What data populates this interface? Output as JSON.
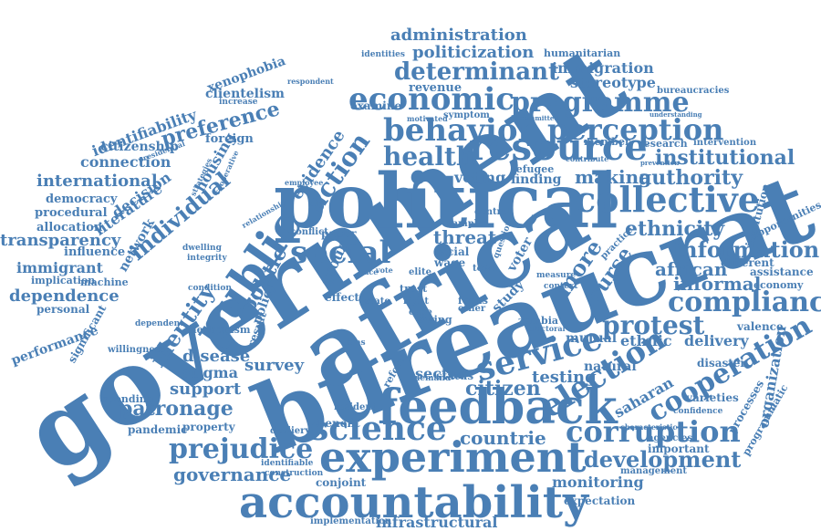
{
  "color": "#4a7fb5",
  "words": [
    "government",
    "bureaucrat",
    "political",
    "africa",
    "accountability",
    "feedback",
    "experiment",
    "resource",
    "economic",
    "behavior",
    "perception",
    "programme",
    "collective",
    "public",
    "social",
    "health",
    "science",
    "service",
    "election",
    "corruption",
    "compliance",
    "cooperation",
    "protest",
    "prejudice",
    "governance",
    "patronage",
    "information",
    "institutional",
    "determinant",
    "administration",
    "politicization",
    "immigration",
    "stereotype",
    "development",
    "monitoring",
    "infrastructural",
    "countrie",
    "citizen",
    "ethnicity",
    "authority",
    "making",
    "african",
    "informal",
    "identity",
    "individual",
    "action",
    "evidence",
    "preference",
    "connection",
    "international",
    "transparency",
    "immigrant",
    "dependence",
    "performance",
    "disease",
    "support",
    "stigma",
    "testing",
    "sector",
    "survey",
    "politic",
    "curse",
    "threat",
    "voting",
    "finding",
    "ethnic",
    "mutual",
    "natural",
    "delivery",
    "organization",
    "assistance",
    "economy",
    "valence",
    "different",
    "opportunities",
    "institution",
    "saharan",
    "varieties",
    "processes",
    "programmatic",
    "important",
    "agencies",
    "management",
    "expectation",
    "benefit",
    "conjoint",
    "implementation",
    "pandemic",
    "property",
    "spending",
    "identifiability",
    "clientelism",
    "xenophobia",
    "citizenship",
    "democracy",
    "procedural",
    "allocation",
    "influence",
    "implication",
    "personal",
    "significant",
    "network",
    "literature",
    "decision",
    "housing",
    "foreign",
    "group",
    "more",
    "zambia",
    "revenue",
    "examine",
    "symptom",
    "humanitarian",
    "bureaucracies",
    "intervention",
    "research",
    "member",
    "refugee",
    "trust",
    "right",
    "cape",
    "swing",
    "elite",
    "state",
    "policy",
    "result",
    "mechanism",
    "condition",
    "integrity",
    "dwelling",
    "machine",
    "willingness",
    "dependent",
    "resident",
    "devliery",
    "identifiable",
    "construction",
    "bias",
    "focus",
    "study",
    "context",
    "measure",
    "town",
    "voter",
    "question",
    "practice",
    "paper",
    "conflict",
    "status",
    "demand",
    "reform",
    "other",
    "control",
    "sample",
    "racial",
    "wage",
    "effect",
    "disaster",
    "confidence",
    "characteristic",
    "identities",
    "respondent",
    "presidential",
    "increase",
    "motivated",
    "contribute",
    "prevention",
    "understanding",
    "committed",
    "electoral",
    "vote",
    "race",
    "employee",
    "relationship",
    "strategies",
    "cooperative"
  ]
}
